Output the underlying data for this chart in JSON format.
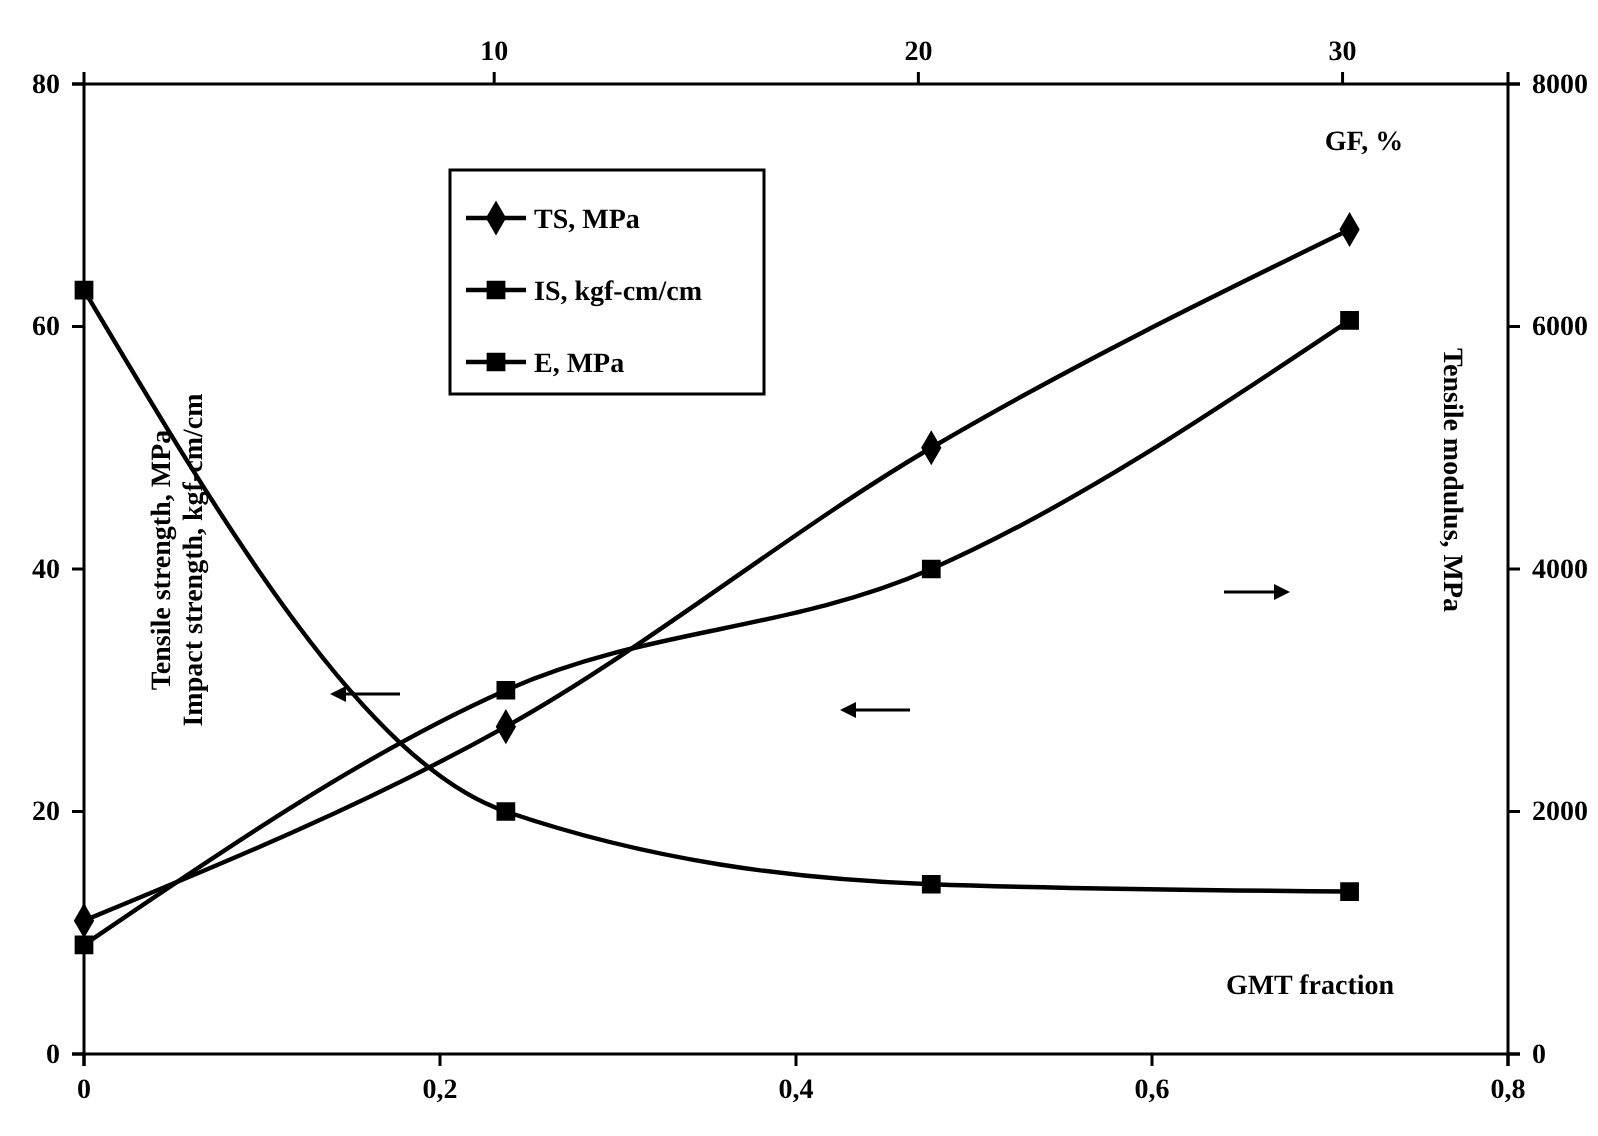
{
  "chart_data": {
    "type": "line",
    "xlabel": "GMT fraction",
    "x2label": "GF, %",
    "ylabel": "Tensile strength, MPa\nImpact strength, kgf-cm/cm",
    "y2label": "Tensile modulus, MPa",
    "x": [
      0,
      0.237,
      0.476,
      0.711
    ],
    "xlim": [
      0,
      0.8
    ],
    "xticks": [
      0,
      {
        "value": 0.2,
        "label": "0,2"
      },
      {
        "value": 0.4,
        "label": "0,4"
      },
      {
        "value": 0.6,
        "label": "0,6"
      },
      {
        "value": 0.8,
        "label": "0,8"
      }
    ],
    "x2lim": [
      0.33,
      33.9
    ],
    "x2ticks": [
      10,
      20,
      30
    ],
    "ylim": [
      0,
      80
    ],
    "yticks": [
      0,
      20,
      40,
      60,
      80
    ],
    "y2lim": [
      0,
      8000
    ],
    "y2ticks": [
      0,
      2000,
      4000,
      6000,
      8000
    ],
    "grid": false,
    "legend": "top",
    "line_style": "solid",
    "series": [
      {
        "name": "TS, MPa",
        "color": "#000000",
        "marker": "diamond",
        "values": [
          11,
          27,
          50,
          68
        ]
      },
      {
        "name": "IS, kgf-cm/cm",
        "color": "#000000",
        "marker": "square",
        "values": [
          63,
          20,
          14,
          13.4
        ]
      },
      {
        "name": "E, MPa",
        "color": "#000000",
        "marker": "square",
        "axis": "y2",
        "values": [
          900,
          3000,
          4000,
          6050
        ]
      }
    ]
  }
}
